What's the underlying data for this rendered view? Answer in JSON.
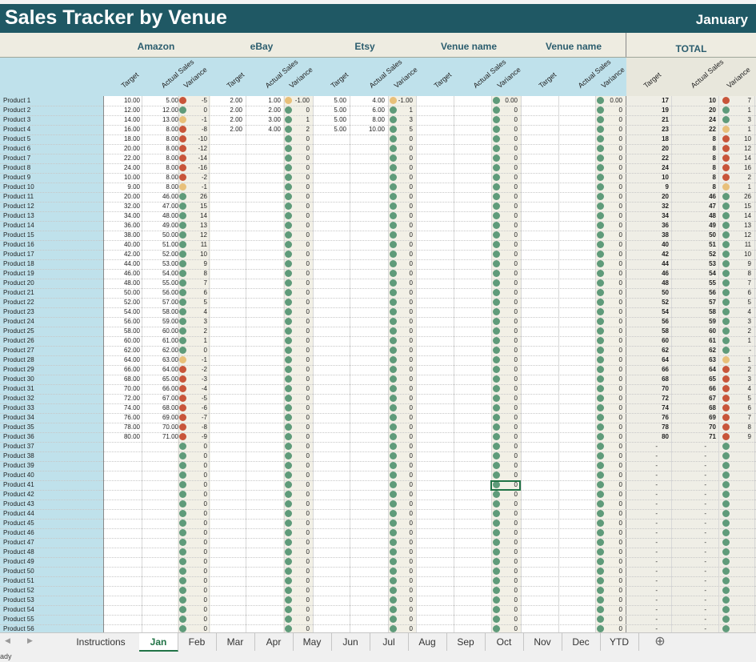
{
  "title": "Sales Tracker by Venue",
  "month": "January",
  "venues": [
    "Amazon",
    "eBay",
    "Etsy",
    "Venue name",
    "Venue name"
  ],
  "total_label": "TOTAL",
  "col_headers": {
    "target": "Target",
    "actual": "Actual Sales",
    "variance": "Variance"
  },
  "colors": {
    "title_bg": "#1f5864",
    "green": "#5f9b7a",
    "amber": "#e8c07a",
    "red": "#c8553a",
    "accent": "#217346"
  },
  "rows": [
    {
      "label": "Product 1",
      "amazon": [
        "10.00",
        "5.00",
        "-5"
      ],
      "ebay": [
        "2.00",
        "1.00",
        "-1.00"
      ],
      "etsy": [
        "5.00",
        "4.00",
        "-1.00"
      ],
      "v4": "0.00",
      "v5": "0.00",
      "total": [
        "17",
        "10",
        "7"
      ],
      "icons": [
        "r",
        "a",
        "a",
        "g",
        "g",
        "r"
      ]
    },
    {
      "label": "Product 2",
      "amazon": [
        "12.00",
        "12.00",
        "0"
      ],
      "ebay": [
        "2.00",
        "2.00",
        "0"
      ],
      "etsy": [
        "5.00",
        "6.00",
        "1"
      ],
      "v4": "0",
      "v5": "0",
      "total": [
        "19",
        "20",
        "1"
      ],
      "icons": [
        "g",
        "g",
        "g",
        "g",
        "g",
        "g"
      ]
    },
    {
      "label": "Product 3",
      "amazon": [
        "14.00",
        "13.00",
        "-1"
      ],
      "ebay": [
        "2.00",
        "3.00",
        "1"
      ],
      "etsy": [
        "5.00",
        "8.00",
        "3"
      ],
      "v4": "0",
      "v5": "0",
      "total": [
        "21",
        "24",
        "3"
      ],
      "icons": [
        "a",
        "g",
        "g",
        "g",
        "g",
        "g"
      ]
    },
    {
      "label": "Product 4",
      "amazon": [
        "16.00",
        "8.00",
        "-8"
      ],
      "ebay": [
        "2.00",
        "4.00",
        "2"
      ],
      "etsy": [
        "5.00",
        "10.00",
        "5"
      ],
      "v4": "0",
      "v5": "0",
      "total": [
        "23",
        "22",
        "1"
      ],
      "icons": [
        "r",
        "g",
        "g",
        "g",
        "g",
        "a"
      ]
    },
    {
      "label": "Product 5",
      "amazon": [
        "18.00",
        "8.00",
        "-10"
      ],
      "total": [
        "18",
        "8",
        "10"
      ],
      "icons": [
        "r",
        "g",
        "g",
        "g",
        "g",
        "r"
      ]
    },
    {
      "label": "Product 6",
      "amazon": [
        "20.00",
        "8.00",
        "-12"
      ],
      "total": [
        "20",
        "8",
        "12"
      ],
      "icons": [
        "r",
        "g",
        "g",
        "g",
        "g",
        "r"
      ]
    },
    {
      "label": "Product 7",
      "amazon": [
        "22.00",
        "8.00",
        "-14"
      ],
      "total": [
        "22",
        "8",
        "14"
      ],
      "icons": [
        "r",
        "g",
        "g",
        "g",
        "g",
        "r"
      ]
    },
    {
      "label": "Product 8",
      "amazon": [
        "24.00",
        "8.00",
        "-16"
      ],
      "total": [
        "24",
        "8",
        "16"
      ],
      "icons": [
        "r",
        "g",
        "g",
        "g",
        "g",
        "r"
      ]
    },
    {
      "label": "Product 9",
      "amazon": [
        "10.00",
        "8.00",
        "-2"
      ],
      "total": [
        "10",
        "8",
        "2"
      ],
      "icons": [
        "r",
        "g",
        "g",
        "g",
        "g",
        "r"
      ]
    },
    {
      "label": "Product 10",
      "amazon": [
        "9.00",
        "8.00",
        "-1"
      ],
      "total": [
        "9",
        "8",
        "1"
      ],
      "icons": [
        "a",
        "g",
        "g",
        "g",
        "g",
        "a"
      ]
    },
    {
      "label": "Product 11",
      "amazon": [
        "20.00",
        "46.00",
        "26"
      ],
      "total": [
        "20",
        "46",
        "26"
      ],
      "icons": [
        "g",
        "g",
        "g",
        "g",
        "g",
        "g"
      ]
    },
    {
      "label": "Product 12",
      "amazon": [
        "32.00",
        "47.00",
        "15"
      ],
      "total": [
        "32",
        "47",
        "15"
      ],
      "icons": [
        "g",
        "g",
        "g",
        "g",
        "g",
        "g"
      ]
    },
    {
      "label": "Product 13",
      "amazon": [
        "34.00",
        "48.00",
        "14"
      ],
      "total": [
        "34",
        "48",
        "14"
      ],
      "icons": [
        "g",
        "g",
        "g",
        "g",
        "g",
        "g"
      ]
    },
    {
      "label": "Product 14",
      "amazon": [
        "36.00",
        "49.00",
        "13"
      ],
      "total": [
        "36",
        "49",
        "13"
      ],
      "icons": [
        "g",
        "g",
        "g",
        "g",
        "g",
        "g"
      ]
    },
    {
      "label": "Product 15",
      "amazon": [
        "38.00",
        "50.00",
        "12"
      ],
      "total": [
        "38",
        "50",
        "12"
      ],
      "icons": [
        "g",
        "g",
        "g",
        "g",
        "g",
        "g"
      ]
    },
    {
      "label": "Product 16",
      "amazon": [
        "40.00",
        "51.00",
        "11"
      ],
      "total": [
        "40",
        "51",
        "11"
      ],
      "icons": [
        "g",
        "g",
        "g",
        "g",
        "g",
        "g"
      ]
    },
    {
      "label": "Product 17",
      "amazon": [
        "42.00",
        "52.00",
        "10"
      ],
      "total": [
        "42",
        "52",
        "10"
      ],
      "icons": [
        "g",
        "g",
        "g",
        "g",
        "g",
        "g"
      ]
    },
    {
      "label": "Product 18",
      "amazon": [
        "44.00",
        "53.00",
        "9"
      ],
      "total": [
        "44",
        "53",
        "9"
      ],
      "icons": [
        "g",
        "g",
        "g",
        "g",
        "g",
        "g"
      ]
    },
    {
      "label": "Product 19",
      "amazon": [
        "46.00",
        "54.00",
        "8"
      ],
      "total": [
        "46",
        "54",
        "8"
      ],
      "icons": [
        "g",
        "g",
        "g",
        "g",
        "g",
        "g"
      ]
    },
    {
      "label": "Product 20",
      "amazon": [
        "48.00",
        "55.00",
        "7"
      ],
      "total": [
        "48",
        "55",
        "7"
      ],
      "icons": [
        "g",
        "g",
        "g",
        "g",
        "g",
        "g"
      ]
    },
    {
      "label": "Product 21",
      "amazon": [
        "50.00",
        "56.00",
        "6"
      ],
      "total": [
        "50",
        "56",
        "6"
      ],
      "icons": [
        "g",
        "g",
        "g",
        "g",
        "g",
        "g"
      ]
    },
    {
      "label": "Product 22",
      "amazon": [
        "52.00",
        "57.00",
        "5"
      ],
      "total": [
        "52",
        "57",
        "5"
      ],
      "icons": [
        "g",
        "g",
        "g",
        "g",
        "g",
        "g"
      ]
    },
    {
      "label": "Product 23",
      "amazon": [
        "54.00",
        "58.00",
        "4"
      ],
      "total": [
        "54",
        "58",
        "4"
      ],
      "icons": [
        "g",
        "g",
        "g",
        "g",
        "g",
        "g"
      ]
    },
    {
      "label": "Product 24",
      "amazon": [
        "56.00",
        "59.00",
        "3"
      ],
      "total": [
        "56",
        "59",
        "3"
      ],
      "icons": [
        "g",
        "g",
        "g",
        "g",
        "g",
        "g"
      ]
    },
    {
      "label": "Product 25",
      "amazon": [
        "58.00",
        "60.00",
        "2"
      ],
      "total": [
        "58",
        "60",
        "2"
      ],
      "icons": [
        "g",
        "g",
        "g",
        "g",
        "g",
        "g"
      ]
    },
    {
      "label": "Product 26",
      "amazon": [
        "60.00",
        "61.00",
        "1"
      ],
      "total": [
        "60",
        "61",
        "1"
      ],
      "icons": [
        "g",
        "g",
        "g",
        "g",
        "g",
        "g"
      ]
    },
    {
      "label": "Product 27",
      "amazon": [
        "62.00",
        "62.00",
        "0"
      ],
      "total": [
        "62",
        "62",
        "-"
      ],
      "icons": [
        "g",
        "g",
        "g",
        "g",
        "g",
        "g"
      ]
    },
    {
      "label": "Product 28",
      "amazon": [
        "64.00",
        "63.00",
        "-1"
      ],
      "total": [
        "64",
        "63",
        "1"
      ],
      "icons": [
        "a",
        "g",
        "g",
        "g",
        "g",
        "a"
      ]
    },
    {
      "label": "Product 29",
      "amazon": [
        "66.00",
        "64.00",
        "-2"
      ],
      "total": [
        "66",
        "64",
        "2"
      ],
      "icons": [
        "r",
        "g",
        "g",
        "g",
        "g",
        "r"
      ]
    },
    {
      "label": "Product 30",
      "amazon": [
        "68.00",
        "65.00",
        "-3"
      ],
      "total": [
        "68",
        "65",
        "3"
      ],
      "icons": [
        "r",
        "g",
        "g",
        "g",
        "g",
        "r"
      ]
    },
    {
      "label": "Product 31",
      "amazon": [
        "70.00",
        "66.00",
        "-4"
      ],
      "total": [
        "70",
        "66",
        "4"
      ],
      "icons": [
        "r",
        "g",
        "g",
        "g",
        "g",
        "r"
      ]
    },
    {
      "label": "Product 32",
      "amazon": [
        "72.00",
        "67.00",
        "-5"
      ],
      "total": [
        "72",
        "67",
        "5"
      ],
      "icons": [
        "r",
        "g",
        "g",
        "g",
        "g",
        "r"
      ]
    },
    {
      "label": "Product 33",
      "amazon": [
        "74.00",
        "68.00",
        "-6"
      ],
      "total": [
        "74",
        "68",
        "6"
      ],
      "icons": [
        "r",
        "g",
        "g",
        "g",
        "g",
        "r"
      ]
    },
    {
      "label": "Product 34",
      "amazon": [
        "76.00",
        "69.00",
        "-7"
      ],
      "total": [
        "76",
        "69",
        "7"
      ],
      "icons": [
        "r",
        "g",
        "g",
        "g",
        "g",
        "r"
      ]
    },
    {
      "label": "Product 35",
      "amazon": [
        "78.00",
        "70.00",
        "-8"
      ],
      "total": [
        "78",
        "70",
        "8"
      ],
      "icons": [
        "r",
        "g",
        "g",
        "g",
        "g",
        "r"
      ]
    },
    {
      "label": "Product 36",
      "amazon": [
        "80.00",
        "71.00",
        "-9"
      ],
      "total": [
        "80",
        "71",
        "9"
      ],
      "icons": [
        "r",
        "g",
        "g",
        "g",
        "g",
        "r"
      ]
    },
    {
      "label": "Product 37",
      "empty": true
    },
    {
      "label": "Product 38",
      "empty": true
    },
    {
      "label": "Product 39",
      "empty": true
    },
    {
      "label": "Product 40",
      "empty": true
    },
    {
      "label": "Product 41",
      "empty": true
    },
    {
      "label": "Product 42",
      "empty": true
    },
    {
      "label": "Product 43",
      "empty": true
    },
    {
      "label": "Product 44",
      "empty": true
    },
    {
      "label": "Product 45",
      "empty": true
    },
    {
      "label": "Product 46",
      "empty": true
    },
    {
      "label": "Product 47",
      "empty": true
    },
    {
      "label": "Product 48",
      "empty": true
    },
    {
      "label": "Product 49",
      "empty": true
    },
    {
      "label": "Product 50",
      "empty": true
    },
    {
      "label": "Product 51",
      "empty": true
    },
    {
      "label": "Product 52",
      "empty": true
    },
    {
      "label": "Product 53",
      "empty": true
    },
    {
      "label": "Product 54",
      "empty": true
    },
    {
      "label": "Product 55",
      "empty": true
    },
    {
      "label": "Product 56",
      "empty": true
    }
  ],
  "empty_values": {
    "zero": "0",
    "dash": "-"
  },
  "sheet_tabs": [
    "Instructions",
    "Jan",
    "Feb",
    "Mar",
    "Apr",
    "May",
    "Jun",
    "Jul",
    "Aug",
    "Sep",
    "Oct",
    "Nov",
    "Dec",
    "YTD"
  ],
  "active_tab": "Jan",
  "add_sheet": "⊕",
  "nav": {
    "prev": "◀",
    "next": "▶"
  },
  "status_text": "ady"
}
